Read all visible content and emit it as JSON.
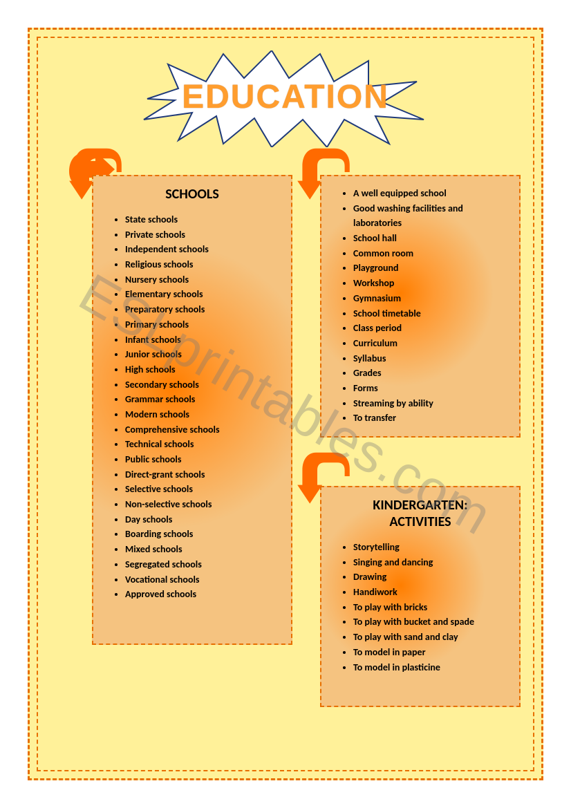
{
  "title": "EDUCATION",
  "watermark": "ESLprintables.com",
  "colors": {
    "page_bg": "#fff199",
    "border": "#e76f00",
    "arrow_fill": "#ff6a00",
    "card_center": "#ff7e00",
    "card_outer": "#f5c380",
    "title_fill": "#ff9d2e"
  },
  "burst": {
    "fill": "#ffffff",
    "stroke": "#1f3a7a",
    "stroke_width": 2
  },
  "arrow": {
    "fill": "#ff6a00",
    "stroke": "#000000",
    "stroke_width": 0
  },
  "cards": {
    "schools": {
      "heading": "SCHOOLS",
      "items": [
        "State schools",
        "Private schools",
        "Independent schools",
        "Religious schools",
        "Nursery schools",
        "Elementary schools",
        "Preparatory schools",
        "Primary schools",
        "Infant schools",
        "Junior schools",
        "High schools",
        "Secondary schools",
        "Grammar schools",
        "Modern schools",
        "Comprehensive schools",
        "Technical schools",
        "Public schools",
        "Direct-grant schools",
        "Selective schools",
        "Non-selective schools",
        "Day schools",
        "Boarding schools",
        "Mixed schools",
        "Segregated schools",
        "Vocational schools",
        "Approved schools"
      ]
    },
    "facilities": {
      "heading": "",
      "items": [
        "A well equipped school",
        "Good washing facilities and laboratories",
        "School hall",
        "Common room",
        "Playground",
        "Workshop",
        "Gymnasium",
        "School timetable",
        "Class period",
        "Curriculum",
        "Syllabus",
        "Grades",
        "Forms",
        "Streaming by ability",
        "To transfer"
      ]
    },
    "kindergarten": {
      "heading": "KINDERGARTEN: ACTIVITIES",
      "items": [
        "Storytelling",
        "Singing and dancing",
        "Drawing",
        "Handiwork",
        "To play with bricks",
        "To play with bucket and spade",
        "To play with sand and clay",
        "To model in paper",
        "To model in plasticine"
      ]
    }
  }
}
